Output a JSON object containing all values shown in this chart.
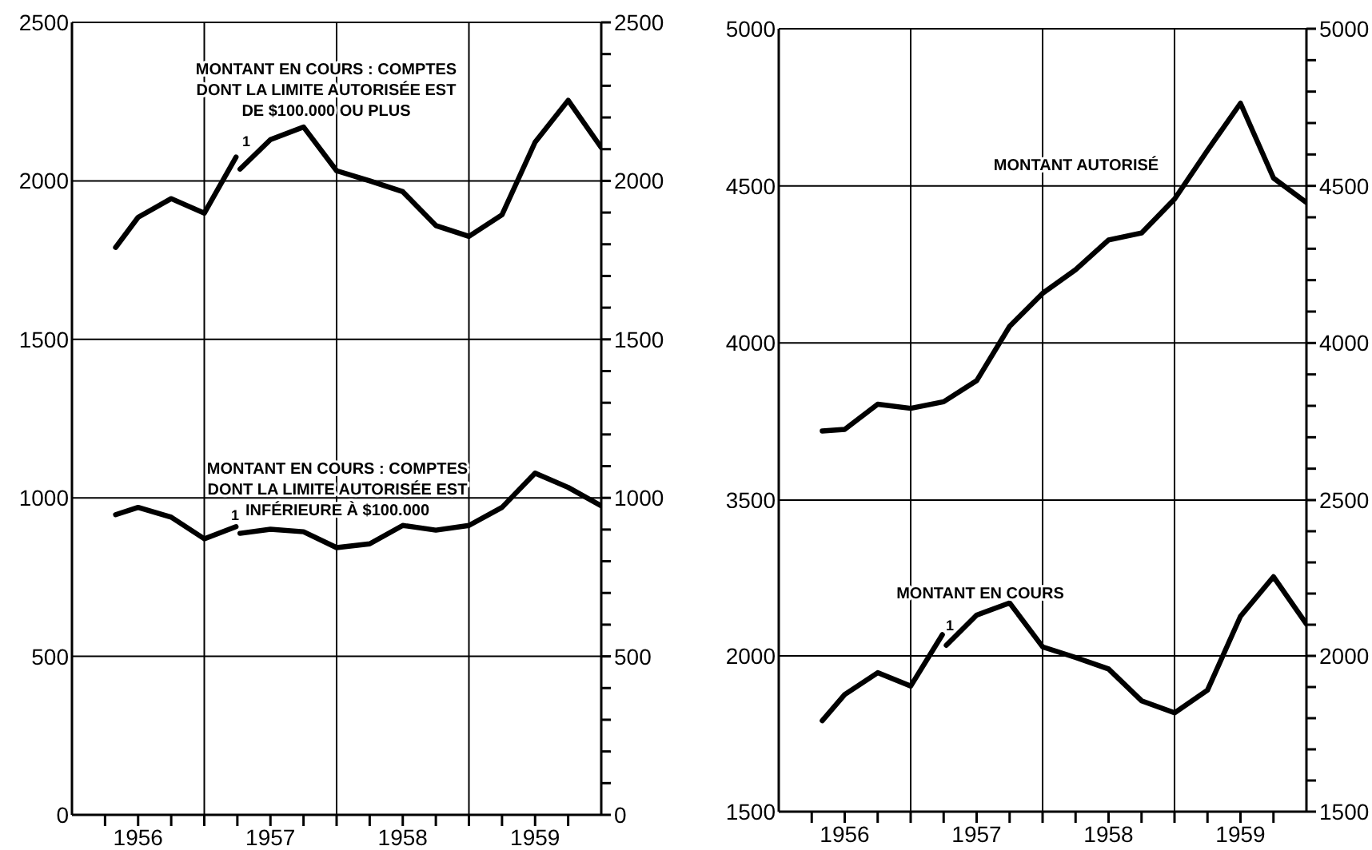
{
  "chart_data": [
    {
      "type": "line",
      "x": [
        1956.33,
        1956.5,
        1956.75,
        1957,
        1957.24,
        1957.25,
        1957.27,
        1957.5,
        1957.75,
        1958,
        1958.25,
        1958.5,
        1958.75,
        1959,
        1959.25,
        1959.5,
        1959.75,
        1960
      ],
      "series": [
        {
          "name": "MONTANT EN COURS : COMPTES\nDONT LA LIMITE AUTORISÉE EST\nDE $100.000 OU PLUS",
          "color": "#000000",
          "values": [
            1790,
            1885,
            1944,
            1898,
            2075,
            null,
            2037,
            2130,
            2170,
            2032,
            2000,
            1966,
            1859,
            1825,
            1893,
            2122,
            2254,
            2105
          ]
        },
        {
          "name": "MONTANT EN COURS : COMPTES\nDONT LA LIMITE AUTORISÉE EST\nINFÉRIEURE À $100.000",
          "color": "#000000",
          "values": [
            947,
            970,
            939,
            871,
            909,
            null,
            888,
            901,
            893,
            843,
            855,
            913,
            898,
            913,
            970,
            1078,
            1033,
            975
          ]
        }
      ],
      "xlim": [
        1956,
        1960
      ],
      "xticks": [
        {
          "value": 1956.25,
          "label": null
        },
        {
          "value": 1956.5,
          "label": "1956"
        },
        {
          "value": 1956.75,
          "label": null
        },
        {
          "value": 1957,
          "label": null
        },
        {
          "value": 1957.25,
          "label": null
        },
        {
          "value": 1957.5,
          "label": "1957"
        },
        {
          "value": 1957.75,
          "label": null
        },
        {
          "value": 1958,
          "label": null
        },
        {
          "value": 1958.25,
          "label": null
        },
        {
          "value": 1958.5,
          "label": "1958"
        },
        {
          "value": 1958.75,
          "label": null
        },
        {
          "value": 1959,
          "label": null
        },
        {
          "value": 1959.25,
          "label": null
        },
        {
          "value": 1959.5,
          "label": "1959"
        },
        {
          "value": 1959.75,
          "label": null
        }
      ],
      "ylim": [
        0,
        2500
      ],
      "yticks": [
        0,
        500,
        1000,
        1500,
        2000,
        2500
      ],
      "y2lim": [
        0,
        2500
      ],
      "y2ticks": [
        0,
        {
          "value": 100,
          "label": null
        },
        {
          "value": 200,
          "label": null
        },
        {
          "value": 300,
          "label": null
        },
        {
          "value": 400,
          "label": null
        },
        500,
        {
          "value": 600,
          "label": null
        },
        {
          "value": 700,
          "label": null
        },
        {
          "value": 800,
          "label": null
        },
        {
          "value": 900,
          "label": null
        },
        1000,
        {
          "value": 1100,
          "label": null
        },
        {
          "value": 1200,
          "label": null
        },
        {
          "value": 1300,
          "label": null
        },
        {
          "value": 1400,
          "label": null
        },
        1500,
        {
          "value": 1600,
          "label": null
        },
        {
          "value": 1700,
          "label": null
        },
        {
          "value": 1800,
          "label": null
        },
        {
          "value": 1900,
          "label": null
        },
        2000,
        {
          "value": 2100,
          "label": null
        },
        {
          "value": 2200,
          "label": null
        },
        {
          "value": 2300,
          "label": null
        },
        {
          "value": 2400,
          "label": null
        },
        2500
      ],
      "grid": "y",
      "ref_lines": [
        {
          "axis": "x",
          "value": 1957,
          "color": "#000000"
        },
        {
          "axis": "x",
          "value": 1958,
          "color": "#000000"
        },
        {
          "axis": "x",
          "value": 1959,
          "color": "#000000"
        }
      ],
      "annotations": [
        "1",
        "1"
      ]
    },
    {
      "type": "line",
      "x": [
        1956.33,
        1956.5,
        1956.75,
        1957,
        1957.25,
        1957.5,
        1957.75,
        1958,
        1958.25,
        1958.5,
        1958.75,
        1959,
        1959.25,
        1959.5,
        1959.75,
        1960
      ],
      "series": [
        {
          "name": "MONTANT AUTORISÉ",
          "color": "#000000",
          "values": [
            3720,
            3725,
            3805,
            3792,
            3813,
            3880,
            4053,
            4158,
            4233,
            4328,
            4350,
            4458,
            4613,
            4763,
            4525,
            4447
          ]
        }
      ],
      "xlim": [
        1956,
        1960
      ],
      "ylim": [
        3500,
        5000
      ],
      "yticks": [
        3500,
        4000,
        4500,
        5000
      ],
      "y2lim": [
        3500,
        5000
      ],
      "y2ticks": [
        {
          "value": 3600,
          "label": null
        },
        {
          "value": 3700,
          "label": null
        },
        {
          "value": 3800,
          "label": null
        },
        {
          "value": 3900,
          "label": null
        },
        4000,
        {
          "value": 4100,
          "label": null
        },
        {
          "value": 4200,
          "label": null
        },
        {
          "value": 4300,
          "label": null
        },
        {
          "value": 4400,
          "label": null
        },
        4500,
        {
          "value": 4600,
          "label": null
        },
        {
          "value": 4700,
          "label": null
        },
        {
          "value": 4800,
          "label": null
        },
        {
          "value": 4900,
          "label": null
        },
        5000
      ],
      "grid": "y",
      "ref_lines": [
        {
          "axis": "x",
          "value": 1957,
          "color": "#000000"
        },
        {
          "axis": "x",
          "value": 1958,
          "color": "#000000"
        },
        {
          "axis": "x",
          "value": 1959,
          "color": "#000000"
        }
      ],
      "tick_labels": "y"
    },
    {
      "type": "line",
      "x": [
        1956.33,
        1956.5,
        1956.75,
        1957,
        1957.24,
        1957.25,
        1957.27,
        1957.5,
        1957.75,
        1958,
        1958.25,
        1958.5,
        1958.75,
        1959,
        1959.25,
        1959.5,
        1959.75,
        1960
      ],
      "series": [
        {
          "name": "MONTANT EN COURS",
          "color": "#000000",
          "values": [
            1792,
            1876,
            1946,
            1903,
            2068,
            null,
            2034,
            2131,
            2170,
            2029,
            1995,
            1958,
            1856,
            1817,
            1890,
            2127,
            2254,
            2102
          ]
        }
      ],
      "xlim": [
        1956,
        1960
      ],
      "xticks": [
        {
          "value": 1956.25,
          "label": null
        },
        {
          "value": 1956.5,
          "label": "1956"
        },
        {
          "value": 1956.75,
          "label": null
        },
        {
          "value": 1957,
          "label": null
        },
        {
          "value": 1957.25,
          "label": null
        },
        {
          "value": 1957.5,
          "label": "1957"
        },
        {
          "value": 1957.75,
          "label": null
        },
        {
          "value": 1958,
          "label": null
        },
        {
          "value": 1958.25,
          "label": null
        },
        {
          "value": 1958.5,
          "label": "1958"
        },
        {
          "value": 1958.75,
          "label": null
        },
        {
          "value": 1959,
          "label": null
        },
        {
          "value": 1959.25,
          "label": null
        },
        {
          "value": 1959.5,
          "label": "1959"
        },
        {
          "value": 1959.75,
          "label": null
        }
      ],
      "ylim": [
        1500,
        2500
      ],
      "yticks": [
        1500,
        2000
      ],
      "y2lim": [
        1500,
        2500
      ],
      "y2ticks": [
        1500,
        {
          "value": 1600,
          "label": null
        },
        {
          "value": 1700,
          "label": null
        },
        {
          "value": 1800,
          "label": null
        },
        {
          "value": 1900,
          "label": null
        },
        2000,
        {
          "value": 2100,
          "label": null
        },
        {
          "value": 2200,
          "label": null
        },
        {
          "value": 2300,
          "label": null
        },
        {
          "value": 2400,
          "label": null
        },
        2500
      ],
      "grid": "y",
      "ref_lines": [
        {
          "axis": "x",
          "value": 1957,
          "color": "#000000"
        },
        {
          "axis": "x",
          "value": 1958,
          "color": "#000000"
        },
        {
          "axis": "x",
          "value": 1959,
          "color": "#000000"
        }
      ],
      "annotations": [
        "1"
      ]
    }
  ]
}
